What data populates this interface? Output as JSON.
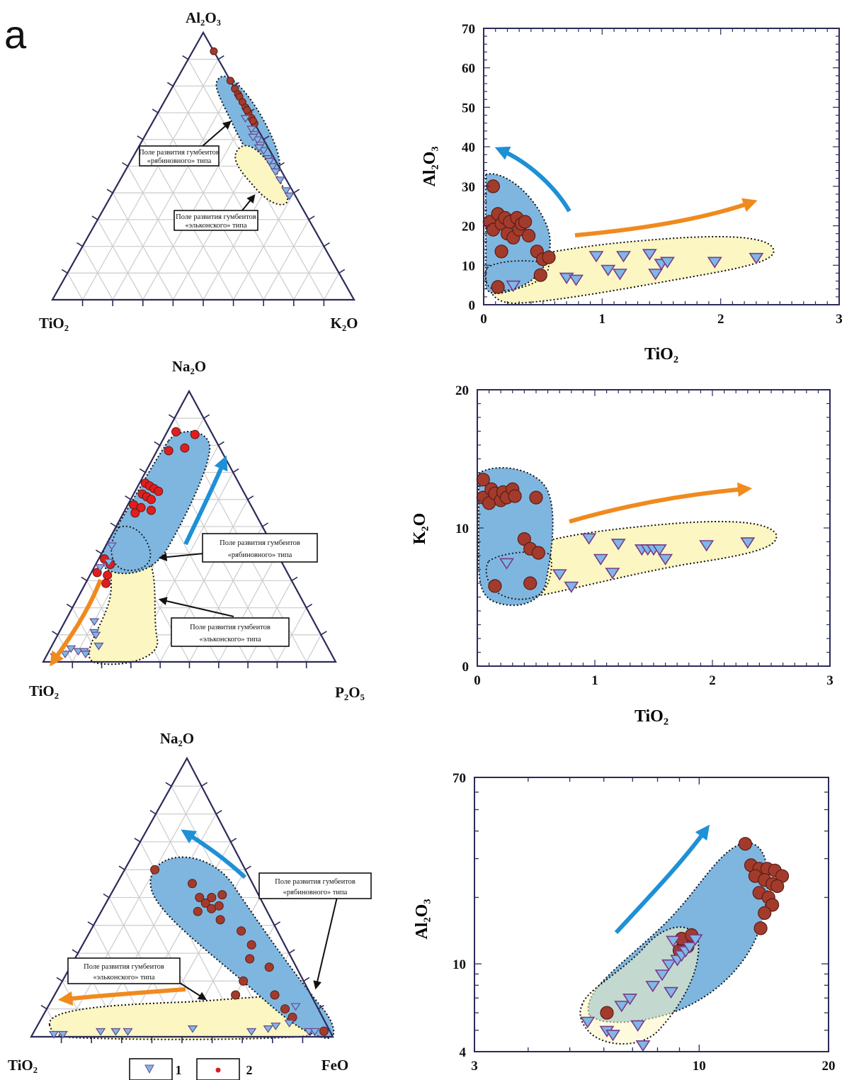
{
  "panel_label": "a",
  "colors": {
    "blue_field": "#7fb6e0",
    "yellow_field": "#fbf6c2",
    "red_point": "#a33b2c",
    "blue_point": "#7fb8e6",
    "blue_arrow": "#1e90d6",
    "orange_arrow": "#f08a1e",
    "grid": "#b8b8b8",
    "axis": "#2b2b5a"
  },
  "legend": {
    "items": [
      {
        "symbol": "triangle-down",
        "label": "1"
      },
      {
        "symbol": "circle",
        "label": "2"
      }
    ]
  },
  "chart_data": [
    {
      "id": "ternary1",
      "type": "scatter",
      "subtype": "ternary",
      "top_label": "Al₂O₃",
      "left_label": "TiO₂",
      "right_label": "K₂O",
      "captions": [
        {
          "lines": [
            "Поле развития гумбеитов",
            "«рябиновного» типа"
          ]
        },
        {
          "lines": [
            "Поле развития гумбеитов",
            "«эльконского» типа"
          ]
        }
      ],
      "red_points": [
        [
          0.93,
          0.07
        ],
        [
          0.82,
          0.18
        ],
        [
          0.79,
          0.21
        ],
        [
          0.77,
          0.23
        ],
        [
          0.76,
          0.24
        ],
        [
          0.74,
          0.26
        ],
        [
          0.72,
          0.28
        ],
        [
          0.7,
          0.3
        ],
        [
          0.68,
          0.32
        ],
        [
          0.66,
          0.34
        ],
        [
          0.71,
          0.29
        ],
        [
          0.67,
          0.33
        ]
      ],
      "blue_points": [
        [
          0.68,
          0.3
        ],
        [
          0.64,
          0.34
        ],
        [
          0.62,
          0.36
        ],
        [
          0.6,
          0.38
        ],
        [
          0.58,
          0.4
        ],
        [
          0.56,
          0.42
        ],
        [
          0.53,
          0.45
        ],
        [
          0.5,
          0.48
        ],
        [
          0.48,
          0.5
        ],
        [
          0.45,
          0.53
        ],
        [
          0.41,
          0.57
        ],
        [
          0.39,
          0.59
        ],
        [
          0.61,
          0.36
        ],
        [
          0.57,
          0.4
        ],
        [
          0.52,
          0.46
        ]
      ]
    },
    {
      "id": "scatter1",
      "type": "scatter",
      "xlabel": "TiO₂",
      "ylabel": "Al₂O₃",
      "xlim": [
        0,
        3
      ],
      "ylim": [
        0,
        70
      ],
      "xticks": [
        0,
        1,
        2,
        3
      ],
      "yticks": [
        0,
        10,
        20,
        30,
        40,
        50,
        60,
        70
      ],
      "series": [
        {
          "marker": "circle",
          "values": [
            [
              0.08,
              30
            ],
            [
              0.05,
              21
            ],
            [
              0.08,
              19
            ],
            [
              0.12,
              23
            ],
            [
              0.15,
              20.5
            ],
            [
              0.18,
              22
            ],
            [
              0.2,
              18
            ],
            [
              0.22,
              21
            ],
            [
              0.25,
              17
            ],
            [
              0.28,
              22
            ],
            [
              0.3,
              19
            ],
            [
              0.32,
              20.5
            ],
            [
              0.35,
              21
            ],
            [
              0.38,
              17.5
            ],
            [
              0.45,
              13.5
            ],
            [
              0.5,
              11.5
            ],
            [
              0.15,
              13.5
            ],
            [
              0.48,
              7.5
            ],
            [
              0.12,
              4.5
            ],
            [
              0.55,
              12
            ]
          ]
        },
        {
          "marker": "triangle",
          "values": [
            [
              0.25,
              5
            ],
            [
              0.7,
              7
            ],
            [
              0.78,
              6.5
            ],
            [
              0.95,
              12.5
            ],
            [
              1.05,
              9
            ],
            [
              1.15,
              8
            ],
            [
              1.18,
              12.5
            ],
            [
              1.4,
              13
            ],
            [
              1.45,
              8
            ],
            [
              1.5,
              10.5
            ],
            [
              1.55,
              11
            ],
            [
              1.95,
              11
            ],
            [
              2.3,
              12
            ]
          ]
        }
      ]
    },
    {
      "id": "ternary2",
      "type": "scatter",
      "subtype": "ternary",
      "top_label": "Na₂O",
      "left_label": "TiO₂",
      "right_label": "P₂O₅",
      "captions": [
        {
          "lines": [
            "Поле развития гумбеитов",
            "«рябиновного» типа"
          ]
        },
        {
          "lines": [
            "Поле развития гумбеитов",
            "«эльконского» типа"
          ]
        }
      ],
      "red_points": [
        [
          0.85,
          0.03
        ],
        [
          0.84,
          0.1
        ],
        [
          0.78,
          0.04
        ],
        [
          0.79,
          0.09
        ],
        [
          0.66,
          0.02
        ],
        [
          0.65,
          0.04
        ],
        [
          0.64,
          0.06
        ],
        [
          0.63,
          0.08
        ],
        [
          0.62,
          0.03
        ],
        [
          0.61,
          0.05
        ],
        [
          0.6,
          0.07
        ],
        [
          0.58,
          0.02
        ],
        [
          0.57,
          0.05
        ],
        [
          0.56,
          0.09
        ],
        [
          0.55,
          0.04
        ],
        [
          0.38,
          0.02
        ],
        [
          0.36,
          0.05
        ],
        [
          0.33,
          0.02
        ],
        [
          0.32,
          0.06
        ],
        [
          0.29,
          0.07
        ]
      ],
      "blue_points": [
        [
          0.43,
          0.02
        ],
        [
          0.37,
          0.04
        ],
        [
          0.35,
          0.02
        ],
        [
          0.15,
          0.1
        ],
        [
          0.11,
          0.12
        ],
        [
          0.1,
          0.13
        ],
        [
          0.06,
          0.16
        ],
        [
          0.05,
          0.07
        ],
        [
          0.04,
          0.1
        ],
        [
          0.04,
          0.12
        ],
        [
          0.03,
          0.06
        ],
        [
          0.03,
          0.13
        ],
        [
          0.02,
          0.03
        ]
      ]
    },
    {
      "id": "scatter2",
      "type": "scatter",
      "xlabel": "TiO₂",
      "ylabel": "K₂O",
      "xlim": [
        0,
        3
      ],
      "ylim": [
        0,
        20
      ],
      "xticks": [
        0,
        1,
        2,
        3
      ],
      "yticks": [
        0,
        10,
        20
      ],
      "series": [
        {
          "marker": "circle",
          "values": [
            [
              0.05,
              13.5
            ],
            [
              0.05,
              12.2
            ],
            [
              0.1,
              11.8
            ],
            [
              0.12,
              12.8
            ],
            [
              0.15,
              12.5
            ],
            [
              0.2,
              12
            ],
            [
              0.22,
              12.6
            ],
            [
              0.25,
              12.2
            ],
            [
              0.3,
              12.8
            ],
            [
              0.32,
              12.3
            ],
            [
              0.5,
              12.2
            ],
            [
              0.4,
              9.2
            ],
            [
              0.45,
              8.5
            ],
            [
              0.52,
              8.2
            ],
            [
              0.45,
              6
            ],
            [
              0.15,
              5.8
            ]
          ]
        },
        {
          "marker": "triangle",
          "values": [
            [
              0.25,
              7.5
            ],
            [
              0.7,
              6.7
            ],
            [
              0.8,
              5.8
            ],
            [
              0.95,
              9.3
            ],
            [
              1.05,
              7.8
            ],
            [
              1.15,
              6.8
            ],
            [
              1.2,
              8.9
            ],
            [
              1.4,
              8.5
            ],
            [
              1.45,
              8.5
            ],
            [
              1.5,
              8.5
            ],
            [
              1.55,
              8.5
            ],
            [
              1.6,
              7.8
            ],
            [
              1.95,
              8.8
            ],
            [
              2.3,
              9
            ]
          ]
        }
      ]
    },
    {
      "id": "ternary3",
      "type": "scatter",
      "subtype": "ternary",
      "top_label": "Na₂O",
      "left_label": "TiO₂",
      "right_label": "FeO",
      "captions": [
        {
          "lines": [
            "Поле развития гумбеитов",
            "«рябиновного» типа"
          ]
        },
        {
          "lines": [
            "Поле развития гумбеитов",
            "«эльконского» типа"
          ]
        }
      ],
      "red_points": [
        [
          0.6,
          0.1
        ],
        [
          0.55,
          0.25
        ],
        [
          0.5,
          0.3
        ],
        [
          0.48,
          0.33
        ],
        [
          0.46,
          0.36
        ],
        [
          0.5,
          0.34
        ],
        [
          0.51,
          0.37
        ],
        [
          0.47,
          0.38
        ],
        [
          0.45,
          0.32
        ],
        [
          0.42,
          0.41
        ],
        [
          0.38,
          0.5
        ],
        [
          0.33,
          0.56
        ],
        [
          0.28,
          0.58
        ],
        [
          0.2,
          0.6
        ],
        [
          0.25,
          0.66
        ],
        [
          0.15,
          0.73
        ],
        [
          0.1,
          0.79
        ],
        [
          0.07,
          0.83
        ],
        [
          0.02,
          0.96
        ],
        [
          0.15,
          0.6
        ]
      ],
      "blue_points": [
        [
          0.01,
          0.07
        ],
        [
          0.01,
          0.1
        ],
        [
          0.02,
          0.22
        ],
        [
          0.02,
          0.27
        ],
        [
          0.02,
          0.31
        ],
        [
          0.03,
          0.52
        ],
        [
          0.02,
          0.72
        ],
        [
          0.03,
          0.77
        ],
        [
          0.04,
          0.79
        ],
        [
          0.05,
          0.83
        ],
        [
          0.11,
          0.82
        ],
        [
          0.02,
          0.91
        ],
        [
          0.02,
          0.93
        ]
      ]
    },
    {
      "id": "scatter3",
      "type": "scatter",
      "scale": "log",
      "xlabel": "",
      "ylabel": "Al₂O₃",
      "xlim": [
        3,
        20
      ],
      "ylim": [
        4,
        70
      ],
      "xticks": [
        3,
        10,
        20
      ],
      "yticks": [
        4,
        10,
        70
      ],
      "series": [
        {
          "marker": "circle",
          "values": [
            [
              12.8,
              35
            ],
            [
              13.2,
              28
            ],
            [
              13.8,
              27
            ],
            [
              14.4,
              27
            ],
            [
              15,
              26.5
            ],
            [
              15.6,
              25
            ],
            [
              13.5,
              25
            ],
            [
              14.2,
              24
            ],
            [
              14.8,
              23
            ],
            [
              15.2,
              22.5
            ],
            [
              13.8,
              21
            ],
            [
              14.5,
              20
            ],
            [
              14.8,
              18.5
            ],
            [
              14.2,
              17
            ],
            [
              13.9,
              14.5
            ],
            [
              6.1,
              6
            ],
            [
              9.0,
              11.5
            ],
            [
              9.2,
              12.5
            ],
            [
              9.4,
              12.0
            ],
            [
              9.1,
              13
            ],
            [
              9.6,
              13.5
            ]
          ]
        },
        {
          "marker": "triangle",
          "values": [
            [
              5.5,
              5.5
            ],
            [
              6.1,
              5.0
            ],
            [
              6.6,
              6.5
            ],
            [
              6.9,
              7.0
            ],
            [
              7.4,
              4.3
            ],
            [
              7.8,
              8.0
            ],
            [
              8.2,
              9.0
            ],
            [
              8.6,
              7.5
            ],
            [
              8.5,
              10.0
            ],
            [
              8.9,
              10.5
            ],
            [
              9.1,
              11.0
            ],
            [
              9.3,
              11.5
            ],
            [
              9.5,
              12.0
            ],
            [
              8.7,
              12.8
            ],
            [
              9.8,
              13.0
            ],
            [
              7.2,
              5.3
            ],
            [
              6.3,
              4.8
            ]
          ]
        }
      ]
    }
  ]
}
